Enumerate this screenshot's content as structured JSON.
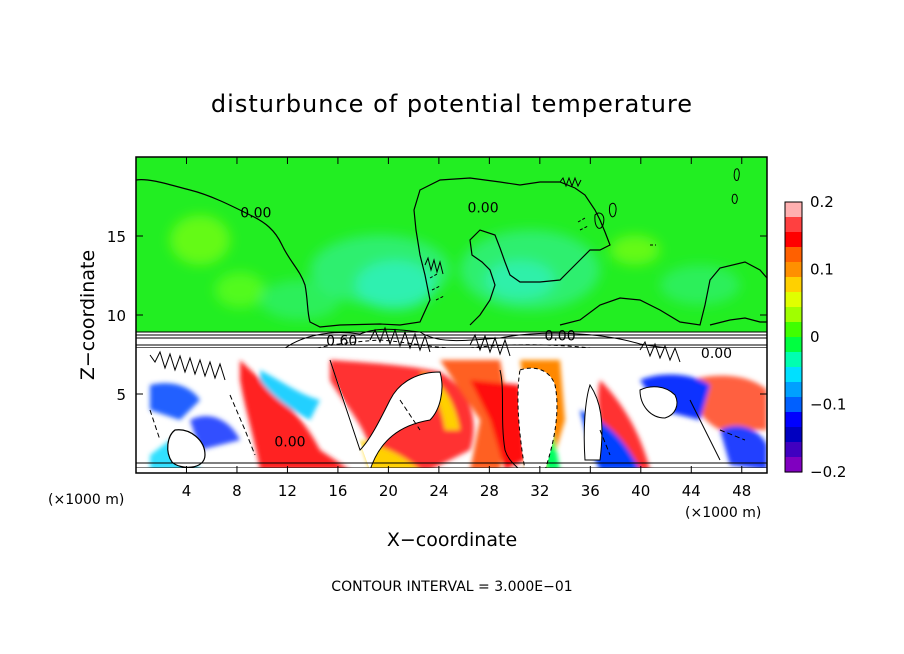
{
  "chart_data": {
    "type": "heatmap",
    "title": "disturbunce of potential temperature",
    "xlabel": "X−coordinate",
    "ylabel": "Z−coordinate",
    "x_unit": "(×1000 m)",
    "y_unit": "(×1000 m)",
    "xlim": [
      0,
      50
    ],
    "ylim": [
      0,
      20
    ],
    "x_ticks": [
      4,
      8,
      12,
      16,
      20,
      24,
      28,
      32,
      36,
      40,
      44,
      48
    ],
    "x_tick_labels": [
      "4",
      "8",
      "12",
      "16",
      "20",
      "24",
      "28",
      "32",
      "36",
      "40",
      "44",
      "48"
    ],
    "y_ticks": [
      5,
      10,
      15
    ],
    "y_tick_labels": [
      "5",
      "10",
      "15"
    ],
    "colorbar": {
      "min": -0.2,
      "max": 0.2,
      "ticks": [
        0.2,
        0.1,
        0,
        -0.1,
        -0.2
      ],
      "tick_labels": [
        "0.2",
        "0.1",
        "0",
        "−0.1",
        "−0.2"
      ],
      "colors": [
        "#ffb0b0",
        "#ff4040",
        "#ff0000",
        "#ff6000",
        "#ff9000",
        "#ffd000",
        "#e0ff00",
        "#a0ff00",
        "#40ff00",
        "#00ff40",
        "#00ffb0",
        "#00e0ff",
        "#00a0ff",
        "#0060ff",
        "#0000ff",
        "#0000c0",
        "#4000c0",
        "#8000c0"
      ]
    },
    "contour_labels": [
      {
        "text": "0.00",
        "x": 9.5,
        "z": 16.5
      },
      {
        "text": "0.00",
        "x": 27.5,
        "z": 16.8
      },
      {
        "text": "0.60",
        "x": 16.3,
        "z": 8.4
      },
      {
        "text": "0.00",
        "x": 33.6,
        "z": 8.7
      },
      {
        "text": "0.00",
        "x": 46.0,
        "z": 7.6
      },
      {
        "text": "0.00",
        "x": 12.2,
        "z": 2.0
      }
    ],
    "contour_interval_text": "CONTOUR INTERVAL = 3.000E−01"
  }
}
